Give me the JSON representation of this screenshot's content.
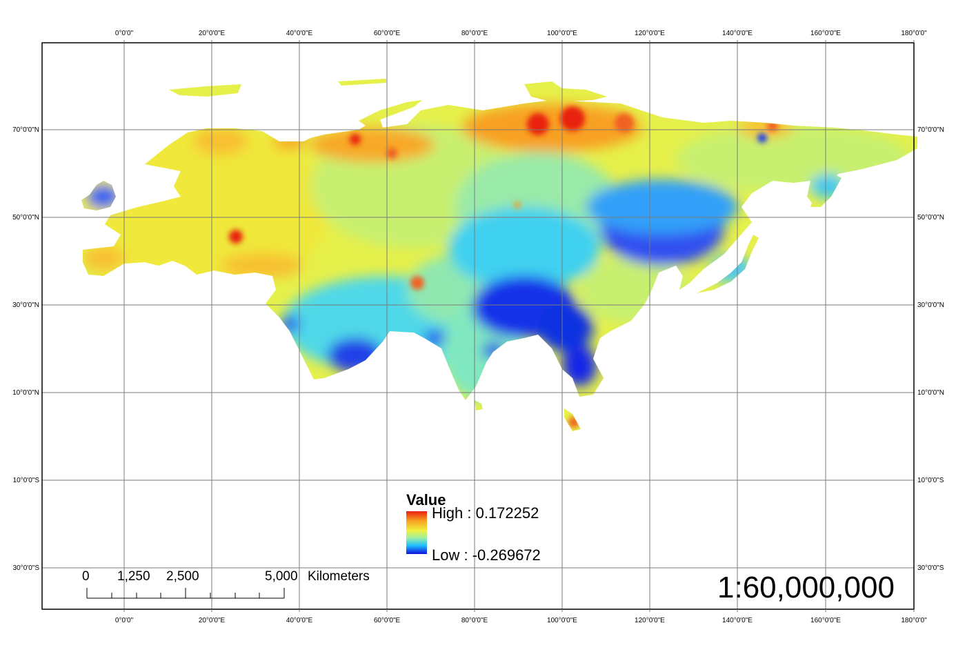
{
  "map": {
    "longitude_labels": [
      "0°0'0\"",
      "20°0'0\"E",
      "40°0'0\"E",
      "60°0'0\"E",
      "80°0'0\"E",
      "100°0'0\"E",
      "120°0'0\"E",
      "140°0'0\"E",
      "160°0'0\"E",
      "180°0'0\""
    ],
    "latitude_labels": [
      "70°0'0\"N",
      "50°0'0\"N",
      "30°0'0\"N",
      "10°0'0\"N",
      "10°0'0\"S",
      "30°0'0\"S"
    ],
    "colors": {
      "low": "#1010e0",
      "mid_low": "#20c0ff",
      "mid": "#a0f0a0",
      "mid_high": "#f0f040",
      "high": "#e82010",
      "grid": "#7a7a7a",
      "frame": "#000000"
    }
  },
  "legend": {
    "title": "Value",
    "high_label": "High : 0.172252",
    "low_label": "Low : -0.269672"
  },
  "scale_bar": {
    "labels": [
      "0",
      "1,250",
      "2,500",
      "5,000"
    ],
    "unit": "Kilometers"
  },
  "scale_ratio": "1:60,000,000"
}
